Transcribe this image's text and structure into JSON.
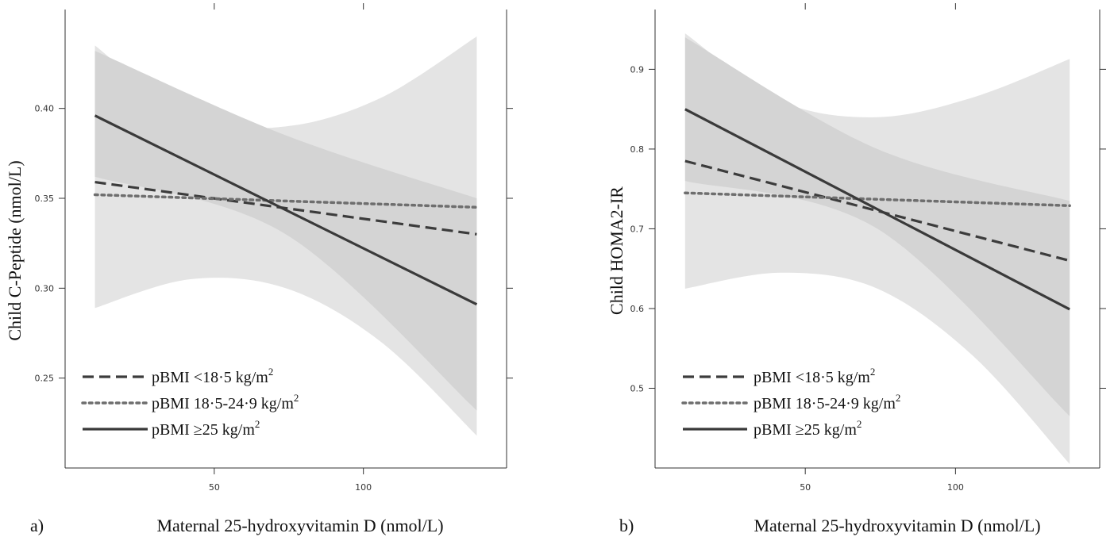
{
  "chart_data": [
    {
      "panel_label": "a)",
      "type": "line",
      "xlabel": "Maternal 25-hydroxyvitamin D (nmol/L)",
      "ylabel": "Child C-Peptide (nmol/L)",
      "xlim": [
        0,
        148
      ],
      "ylim": [
        0.2,
        0.455
      ],
      "xticks": [
        50,
        100
      ],
      "yticks": [
        0.25,
        0.3,
        0.35,
        0.4
      ],
      "ytick_labels": [
        "0.25",
        "0.30",
        "0.35",
        "0.40"
      ],
      "xtick_labels": [
        "50",
        "100"
      ],
      "legend_position": "bottom-left",
      "series": [
        {
          "name": "pBMI <18·5 kg/m",
          "name_sup": "2",
          "style": "dashed",
          "x": [
            10,
            138
          ],
          "y": [
            0.359,
            0.33
          ]
        },
        {
          "name": "pBMI 18·5-24·9 kg/m",
          "name_sup": "2",
          "style": "dotted",
          "x": [
            10,
            138
          ],
          "y": [
            0.352,
            0.345
          ]
        },
        {
          "name": "pBMI ≥25 kg/m",
          "name_sup": "2",
          "style": "solid",
          "x": [
            10,
            138
          ],
          "y": [
            0.396,
            0.291
          ],
          "ci_outer": {
            "upper": [
              0.435,
              0.395,
              0.39,
              0.406,
              0.44
            ],
            "lower": [
              0.289,
              0.305,
              0.3,
              0.27,
              0.218
            ],
            "x": [
              10,
              42,
              74,
              106,
              138
            ]
          },
          "ci_inner": {
            "upper": [
              0.432,
              0.385,
              0.35
            ],
            "lower": [
              0.362,
              0.33,
              0.232
            ],
            "x": [
              10,
              74,
              138
            ]
          }
        }
      ]
    },
    {
      "panel_label": "b)",
      "type": "line",
      "xlabel": "Maternal 25-hydroxyvitamin D (nmol/L)",
      "ylabel": "Child HOMA2-IR",
      "xlim": [
        0,
        148
      ],
      "ylim": [
        0.4,
        0.975
      ],
      "xticks": [
        50,
        100
      ],
      "yticks": [
        0.5,
        0.6,
        0.7,
        0.8,
        0.9
      ],
      "ytick_labels": [
        "0.5",
        "0.6",
        "0.7",
        "0.8",
        "0.9"
      ],
      "xtick_labels": [
        "50",
        "100"
      ],
      "legend_position": "bottom-left",
      "series": [
        {
          "name": "pBMI <18·5 kg/m",
          "name_sup": "2",
          "style": "dashed",
          "x": [
            10,
            138
          ],
          "y": [
            0.785,
            0.66
          ]
        },
        {
          "name": "pBMI 18·5-24·9 kg/m",
          "name_sup": "2",
          "style": "dotted",
          "x": [
            10,
            138
          ],
          "y": [
            0.745,
            0.729
          ]
        },
        {
          "name": "pBMI ≥25 kg/m",
          "name_sup": "2",
          "style": "solid",
          "x": [
            10,
            138
          ],
          "y": [
            0.85,
            0.599
          ],
          "ci_outer": {
            "upper": [
              0.945,
              0.86,
              0.84,
              0.865,
              0.913
            ],
            "lower": [
              0.625,
              0.645,
              0.625,
              0.54,
              0.405
            ],
            "x": [
              10,
              42,
              74,
              106,
              138
            ]
          },
          "ci_inner": {
            "upper": [
              0.94,
              0.8,
              0.735
            ],
            "lower": [
              0.76,
              0.7,
              0.465
            ],
            "x": [
              10,
              74,
              138
            ]
          }
        }
      ]
    }
  ],
  "colors": {
    "ci_outer": "#e4e4e4",
    "ci_inner": "#d4d4d4",
    "dashed": "#3c3c3c",
    "dotted": "#6e6e6e",
    "solid": "#3a3a3a",
    "axis": "#333333"
  }
}
